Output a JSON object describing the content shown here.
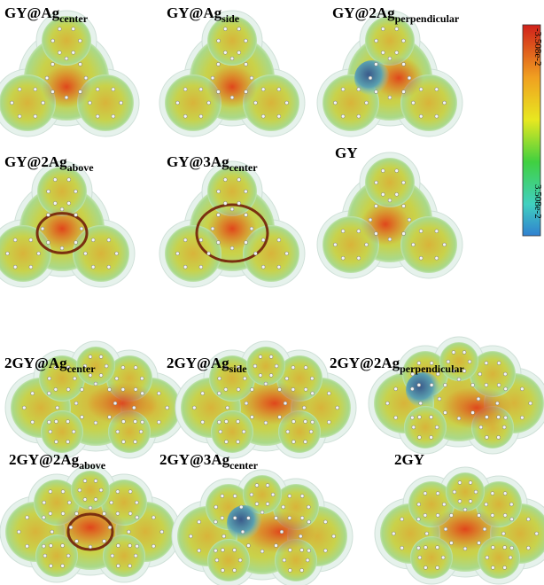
{
  "colorbar": {
    "top": "-3.508e-2",
    "bottom": "3.508e-2"
  },
  "panels": [
    {
      "label": "GY@Ag",
      "sub": "center"
    },
    {
      "label": "GY@Ag",
      "sub": "side"
    },
    {
      "label": "GY@2Ag",
      "sub": "perpendicular"
    },
    {
      "label": "GY@2Ag",
      "sub": "above"
    },
    {
      "label": "GY@3Ag",
      "sub": "center"
    },
    {
      "label": "GY"
    },
    {
      "label": "2GY@Ag",
      "sub": "center"
    },
    {
      "label": "2GY@Ag",
      "sub": "side"
    },
    {
      "label": "2GY@2Ag",
      "sub": "perpendicular"
    },
    {
      "label": "2GY@2Ag",
      "sub": "above"
    },
    {
      "label": "2GY@3Ag",
      "sub": "center"
    },
    {
      "label": "2GY"
    }
  ]
}
